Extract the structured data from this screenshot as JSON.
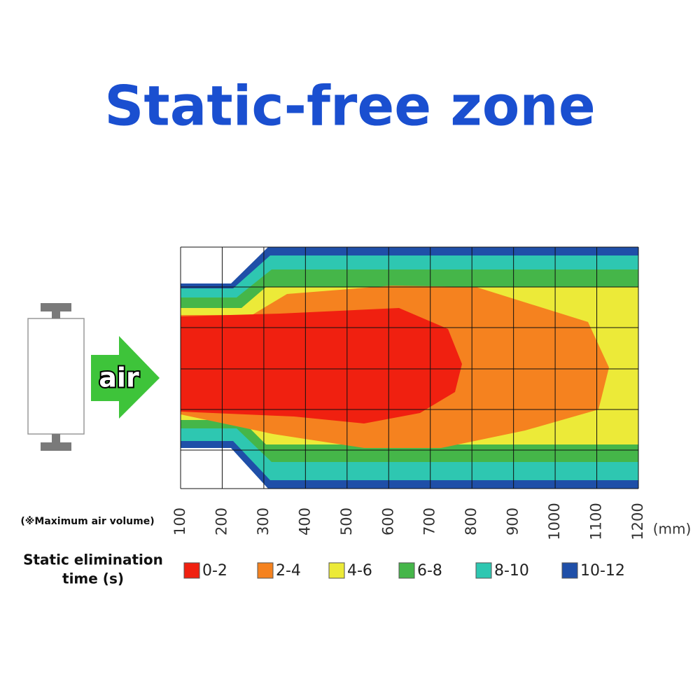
{
  "title": "Static-free zone",
  "device": {
    "label": "air"
  },
  "axis": {
    "note": "(※Maximum air volume)",
    "labels": [
      "100",
      "200",
      "300",
      "400",
      "500",
      "600",
      "700",
      "800",
      "900",
      "1000",
      "1100",
      "1200"
    ],
    "unit": "(mm)"
  },
  "legend": {
    "title_lines": [
      "Static elimination",
      "time (s)"
    ],
    "items": [
      {
        "label": "0-2",
        "color": "#f02010"
      },
      {
        "label": "2-4",
        "color": "#f5821f"
      },
      {
        "label": "4-6",
        "color": "#ecea38"
      },
      {
        "label": "6-8",
        "color": "#45b649"
      },
      {
        "label": "8-10",
        "color": "#2ec7b1"
      },
      {
        "label": "10-12",
        "color": "#1f4fa8"
      }
    ]
  }
}
